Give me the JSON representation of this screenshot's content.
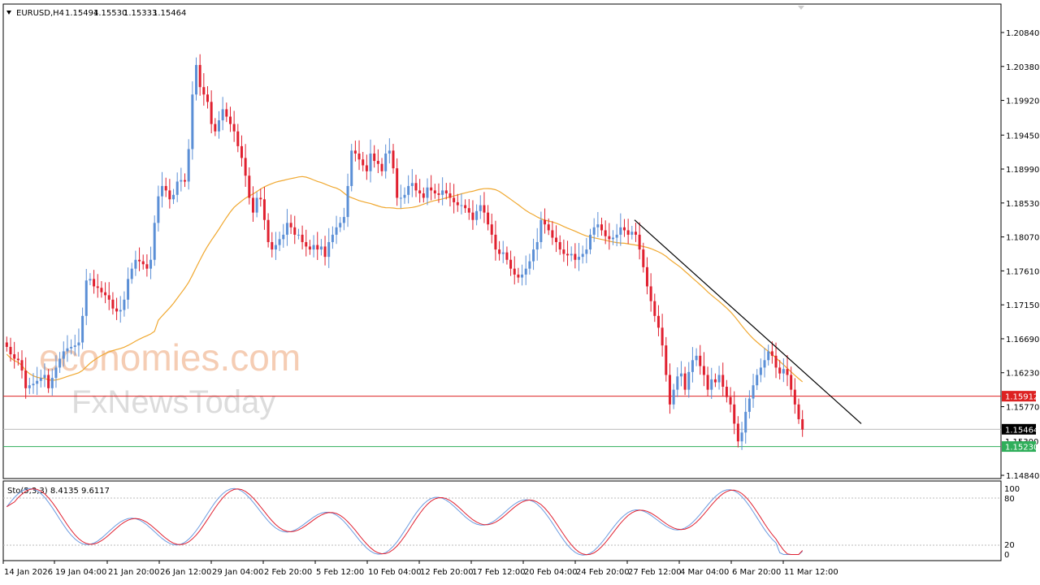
{
  "header": {
    "arrow_icon": "triangle-down-icon",
    "symbol": "EURUSD,H4",
    "open": "1.15494",
    "high": "1.15530",
    "low": "1.15333",
    "close": "1.15464"
  },
  "watermark": {
    "line1": "economies.com",
    "line2": "FxNewsToday"
  },
  "price_axis_labels": [
    "1.20840",
    "1.20380",
    "1.19920",
    "1.19450",
    "1.18990",
    "1.18530",
    "1.18070",
    "1.17610",
    "1.17150",
    "1.16690",
    "1.16230",
    "1.15770",
    "1.14840"
  ],
  "price_tags": {
    "resistance": "1.15912",
    "current": "1.15464",
    "hidden": "1.15300",
    "support": "1.15230"
  },
  "stoch": {
    "label": "Sto(5,3,3) 8.4135 9.6117",
    "levels": [
      "100",
      "80",
      "20",
      "0"
    ]
  },
  "time_axis_labels": [
    "14 Jan 2026",
    "19 Jan 04:00",
    "21 Jan 20:00",
    "26 Jan 12:00",
    "29 Jan 04:00",
    "2 Feb 20:00",
    "5 Feb 12:00",
    "10 Feb 04:00",
    "12 Feb 20:00",
    "17 Feb 12:00",
    "20 Feb 04:00",
    "24 Feb 20:00",
    "27 Feb 12:00",
    "4 Mar 04:00",
    "6 Mar 20:00",
    "11 Mar 12:00"
  ],
  "colors": {
    "bull": "#5b8fd6",
    "bear": "#e0202f",
    "ma": "#f0a830",
    "resistance_line": "#dd2222",
    "support_line": "#2fae5a",
    "current_line": "#bbbbbb",
    "stoch_main": "#6b9be0",
    "stoch_signal": "#e02030"
  },
  "chart_data": {
    "type": "candlestick",
    "symbol": "EURUSD",
    "timeframe": "H4",
    "ylim": [
      1.1484,
      1.2102
    ],
    "closes": [
      1.1658,
      1.1648,
      1.1642,
      1.164,
      1.1626,
      1.1602,
      1.1606,
      1.1608,
      1.1612,
      1.1616,
      1.162,
      1.1602,
      1.1616,
      1.163,
      1.1642,
      1.1652,
      1.1656,
      1.1658,
      1.166,
      1.1664,
      1.17,
      1.1748,
      1.175,
      1.174,
      1.1738,
      1.1732,
      1.1728,
      1.1722,
      1.171,
      1.1706,
      1.1708,
      1.1722,
      1.175,
      1.1764,
      1.1776,
      1.1774,
      1.177,
      1.1764,
      1.1776,
      1.1826,
      1.1862,
      1.1876,
      1.187,
      1.1858,
      1.1864,
      1.1882,
      1.1884,
      1.1882,
      1.1926,
      1.2,
      1.204,
      1.201,
      1.2,
      1.199,
      1.196,
      1.195,
      1.1965,
      1.198,
      1.197,
      1.196,
      1.195,
      1.193,
      1.1914,
      1.189,
      1.186,
      1.184,
      1.186,
      1.1858,
      1.183,
      1.18,
      1.179,
      1.1796,
      1.1804,
      1.181,
      1.1826,
      1.182,
      1.181,
      1.181,
      1.18,
      1.1794,
      1.179,
      1.1796,
      1.179,
      1.1794,
      1.178,
      1.18,
      1.181,
      1.182,
      1.1826,
      1.1834,
      1.1876,
      1.1924,
      1.192,
      1.1912,
      1.1904,
      1.1896,
      1.192,
      1.191,
      1.1906,
      1.1896,
      1.192,
      1.1924,
      1.19,
      1.186,
      1.186,
      1.1864,
      1.1876,
      1.188,
      1.187,
      1.1866,
      1.186,
      1.1874,
      1.187,
      1.1866,
      1.1864,
      1.187,
      1.1866,
      1.186,
      1.1854,
      1.185,
      1.185,
      1.1846,
      1.184,
      1.183,
      1.1842,
      1.185,
      1.184,
      1.1824,
      1.181,
      1.179,
      1.1784,
      1.1786,
      1.1776,
      1.1764,
      1.1756,
      1.1752,
      1.1756,
      1.1764,
      1.1774,
      1.179,
      1.18,
      1.183,
      1.1824,
      1.1816,
      1.1806,
      1.18,
      1.179,
      1.1784,
      1.1782,
      1.1784,
      1.1776,
      1.178,
      1.1784,
      1.179,
      1.181,
      1.182,
      1.1824,
      1.1816,
      1.1808,
      1.1804,
      1.1806,
      1.181,
      1.182,
      1.1816,
      1.181,
      1.1814,
      1.181,
      1.179,
      1.1766,
      1.174,
      1.172,
      1.17,
      1.1684,
      1.166,
      1.162,
      1.158,
      1.16,
      1.1618,
      1.1622,
      1.16,
      1.1624,
      1.164,
      1.1646,
      1.1632,
      1.162,
      1.16,
      1.1614,
      1.161,
      1.162,
      1.1604,
      1.159,
      1.158,
      1.1554,
      1.153,
      1.1542,
      1.157,
      1.1588,
      1.1606,
      1.162,
      1.163,
      1.164,
      1.1652,
      1.1646,
      1.163,
      1.1622,
      1.1628,
      1.162,
      1.16,
      1.158,
      1.156,
      1.1546
    ],
    "ma_period_note": "",
    "resistance": 1.15912,
    "support": 1.1523,
    "current": 1.15464,
    "trendline": {
      "from": [
        27.0,
        1.183
      ],
      "to": [
        41.4,
        1.1554
      ]
    },
    "stochastic": {
      "k": 8.4135,
      "d": 9.6117,
      "levels": [
        80,
        20
      ],
      "ylim": [
        0,
        100
      ]
    }
  }
}
